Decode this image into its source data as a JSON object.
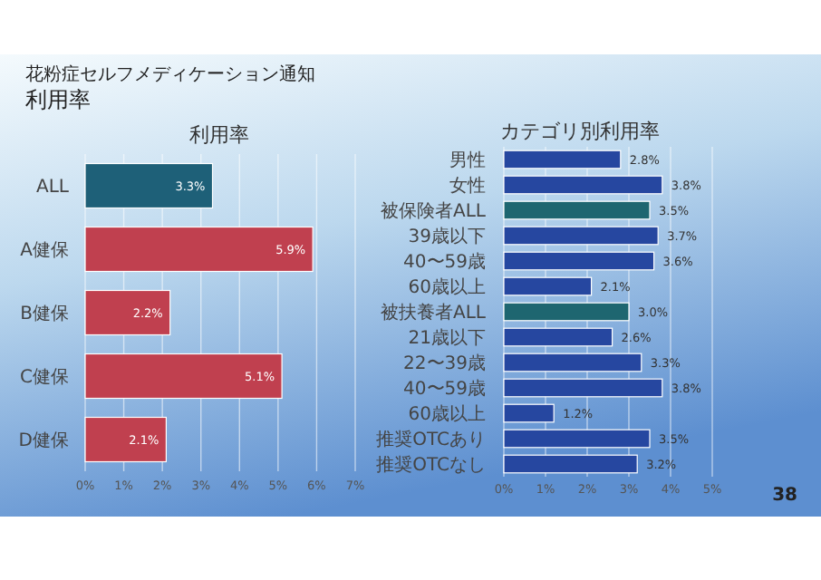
{
  "chart_data": [
    {
      "type": "other",
      "annotations": [
        "花粉症セルフメディケーション通知",
        "利用率",
        "38"
      ]
    },
    {
      "type": "bar",
      "orientation": "horizontal",
      "title": "利用率",
      "categories": [
        "ALL",
        "A健保",
        "B健保",
        "C健保",
        "D健保"
      ],
      "values": [
        3.3,
        5.9,
        2.2,
        5.1,
        2.1
      ],
      "colors": [
        "#1e6078",
        "#c0404f",
        "#c0404f",
        "#c0404f",
        "#c0404f"
      ],
      "value_labels": [
        "3.3%",
        "5.9%",
        "2.2%",
        "5.1%",
        "2.1%"
      ],
      "xlim": [
        0,
        7
      ],
      "xticks": [
        {
          "value": 0,
          "label": "0%"
        },
        {
          "value": 1,
          "label": "1%"
        },
        {
          "value": 2,
          "label": "2%"
        },
        {
          "value": 3,
          "label": "3%"
        },
        {
          "value": 4,
          "label": "4%"
        },
        {
          "value": 5,
          "label": "5%"
        },
        {
          "value": 6,
          "label": "6%"
        },
        {
          "value": 7,
          "label": "7%"
        }
      ],
      "grid": "x"
    },
    {
      "type": "bar",
      "orientation": "horizontal",
      "title": "カテゴリ別利用率",
      "categories": [
        "男性",
        "女性",
        "被保険者ALL",
        "39歳以下",
        "40〜59歳",
        "60歳以上",
        "被扶養者ALL",
        "21歳以下",
        "22〜39歳",
        "40〜59歳",
        "60歳以上",
        "推奨OTCあり",
        "推奨OTCなし"
      ],
      "values": [
        2.8,
        3.8,
        3.5,
        3.7,
        3.6,
        2.1,
        3.0,
        2.6,
        3.3,
        3.8,
        1.2,
        3.5,
        3.2
      ],
      "colors": [
        "#2647a0",
        "#2647a0",
        "#1e6670",
        "#2647a0",
        "#2647a0",
        "#2647a0",
        "#1e6670",
        "#2647a0",
        "#2647a0",
        "#2647a0",
        "#2647a0",
        "#2647a0",
        "#2647a0"
      ],
      "value_labels": [
        "2.8%",
        "3.8%",
        "3.5%",
        "3.7%",
        "3.6%",
        "2.1%",
        "3.0%",
        "2.6%",
        "3.3%",
        "3.8%",
        "1.2%",
        "3.5%",
        "3.2%"
      ],
      "xlim": [
        0,
        5
      ],
      "xticks": [
        {
          "value": 0,
          "label": "0%"
        },
        {
          "value": 1,
          "label": "1%"
        },
        {
          "value": 2,
          "label": "2%"
        },
        {
          "value": 3,
          "label": "3%"
        },
        {
          "value": 4,
          "label": "4%"
        },
        {
          "value": 5,
          "label": "5%"
        }
      ],
      "grid": "x"
    }
  ]
}
